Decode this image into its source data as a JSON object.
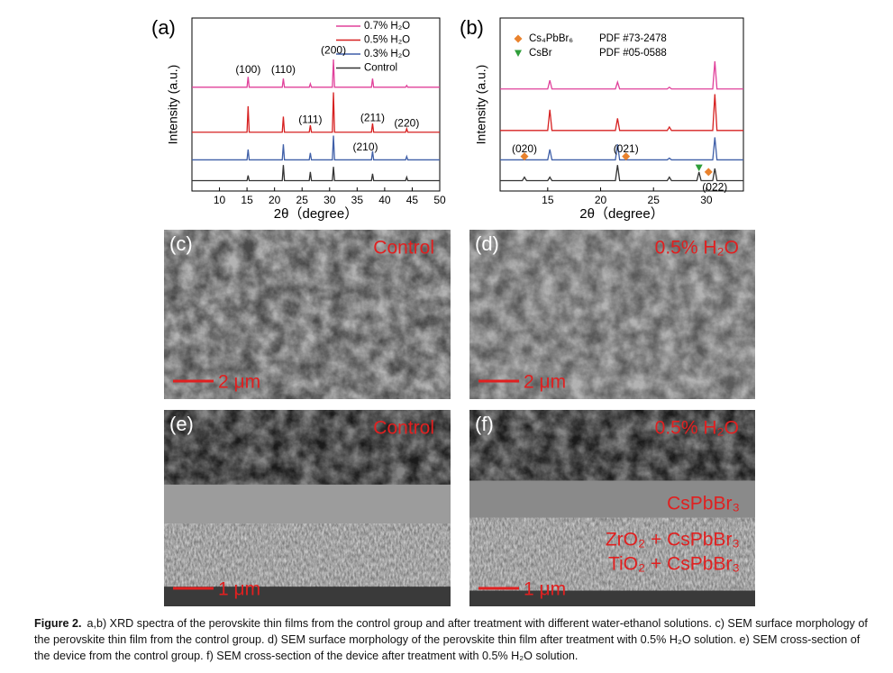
{
  "chart_data": [
    {
      "type": "line",
      "panel_label": "(a)",
      "xlabel": "2θ（degree）",
      "ylabel": "Intensity (a.u.)",
      "x": [
        5,
        15.0,
        15.2,
        15.4,
        21.4,
        21.6,
        21.8,
        26.3,
        26.5,
        26.7,
        30.5,
        30.7,
        30.9,
        37.6,
        37.8,
        38.0,
        43.8,
        44.0,
        44.2,
        50
      ],
      "series": [
        {
          "name": "0.7% H₂O",
          "color": "#e0409a",
          "values": [
            60,
            60,
            66,
            60,
            60,
            65,
            60,
            60,
            62,
            60,
            60,
            76,
            60,
            60,
            65,
            60,
            60,
            61,
            60,
            60
          ]
        },
        {
          "name": "0.5% H₂O",
          "color": "#d62020",
          "values": [
            34,
            34,
            49,
            34,
            34,
            43,
            34,
            34,
            38,
            34,
            34,
            57,
            34,
            34,
            39,
            34,
            34,
            36,
            34,
            34
          ]
        },
        {
          "name": "0.3% H₂O",
          "color": "#3f5fa8",
          "values": [
            18,
            18,
            24,
            18,
            18,
            27,
            18,
            18,
            22,
            18,
            18,
            32,
            18,
            18,
            23,
            18,
            18,
            20,
            18,
            18
          ]
        },
        {
          "name": "Control",
          "color": "#333333",
          "values": [
            6,
            6,
            9,
            6,
            6,
            15,
            6,
            6,
            11,
            6,
            6,
            14,
            6,
            6,
            10,
            6,
            6,
            8,
            6,
            6
          ]
        }
      ],
      "annotations": [
        "(100)",
        "(110)",
        "(200)",
        "(111)",
        "(211)",
        "(220)",
        "(210)"
      ],
      "xlim": [
        5,
        50
      ],
      "xticks": [
        10,
        15,
        20,
        25,
        30,
        35,
        40,
        45,
        50
      ],
      "ylim": [
        0,
        100
      ],
      "legend": "upper right"
    },
    {
      "type": "line",
      "panel_label": "(b)",
      "xlabel": "2θ（degree）",
      "ylabel": "Intensity (a.u.)",
      "x": [
        10.5,
        12.6,
        12.8,
        13.0,
        15.0,
        15.2,
        15.4,
        21.4,
        21.6,
        21.8,
        26.3,
        26.5,
        26.7,
        29.1,
        29.3,
        29.5,
        30.6,
        30.8,
        31.0,
        33.5
      ],
      "series": [
        {
          "color": "#e0409a",
          "values": [
            59,
            59,
            59,
            59,
            59,
            64,
            59,
            59,
            63,
            59,
            59,
            60,
            59,
            59,
            59,
            59,
            59,
            75,
            59,
            59
          ]
        },
        {
          "color": "#d62020",
          "values": [
            35,
            35,
            35,
            35,
            35,
            47,
            35,
            35,
            42,
            35,
            35,
            37,
            35,
            35,
            35,
            35,
            35,
            56,
            35,
            35
          ]
        },
        {
          "color": "#3f5fa8",
          "values": [
            18,
            18,
            18,
            18,
            18,
            24,
            18,
            18,
            27,
            18,
            18,
            19,
            18,
            18,
            18,
            18,
            18,
            31,
            18,
            18
          ]
        },
        {
          "color": "#333333",
          "values": [
            6,
            6,
            8,
            6,
            6,
            8,
            6,
            6,
            15,
            6,
            6,
            8,
            6,
            6,
            11,
            6,
            6,
            13,
            6,
            6
          ]
        }
      ],
      "phases": [
        {
          "name": "Cs₄PbBr₆",
          "ref": "PDF #73-2478",
          "color": "#e9822d"
        },
        {
          "name": "CsBr",
          "ref": "PDF #05-0588",
          "color": "#2f9e3a"
        }
      ],
      "phase_points": [
        {
          "phase": 0,
          "x": 12.8,
          "y": 20
        },
        {
          "phase": 0,
          "x": 22.4,
          "y": 20
        },
        {
          "phase": 0,
          "x": 30.2,
          "y": 11
        },
        {
          "phase": 1,
          "x": 29.3,
          "y": 13.5
        }
      ],
      "annotations": [
        "(020)",
        "(021)",
        "(022)"
      ],
      "xlim": [
        10.5,
        33.5
      ],
      "xticks": [
        15,
        20,
        25,
        30
      ],
      "ylim": [
        0,
        100
      ]
    }
  ],
  "panels": [
    {
      "label": "(c)",
      "condition": "Control",
      "scale": "2 μm"
    },
    {
      "label": "(d)",
      "condition": "0.5% H₂O",
      "scale": "2 μm"
    },
    {
      "label": "(e)",
      "condition": "Control",
      "scale": "1 μm"
    },
    {
      "label": "(f)",
      "condition": "0.5% H₂O",
      "scale": "1 μm",
      "layers": [
        "CsPbBr₃",
        "ZrO₂ + CsPbBr₃",
        "TiO₂ + CsPbBr₃"
      ]
    }
  ],
  "caption": {
    "label": "Figure 2.",
    "text": "a,b) XRD spectra of the perovskite thin films from the control group and after treatment with different water-ethanol solutions. c) SEM surface morphology of the perovskite thin film from the control group. d) SEM surface morphology of the perovskite thin film after treatment with 0.5% H₂O solution. e) SEM cross-section of the device from the control group. f) SEM cross-section of the device after treatment with 0.5% H₂O solution."
  }
}
